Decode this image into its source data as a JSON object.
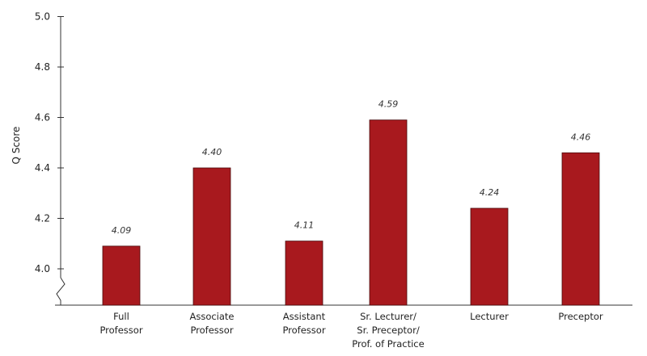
{
  "chart_data": {
    "type": "bar",
    "ylabel": "Q Score",
    "xlabel": "",
    "ylim": [
      3.9,
      5.0
    ],
    "y_ticks": [
      "5.0",
      "4.8",
      "4.6",
      "4.4",
      "4.2",
      "4.0"
    ],
    "axis_break": true,
    "grid": false,
    "bar_color": "#a8191e",
    "categories": [
      [
        "Full",
        "Professor"
      ],
      [
        "Associate",
        "Professor"
      ],
      [
        "Assistant",
        "Professor"
      ],
      [
        "Sr. Lecturer/",
        "Sr. Preceptor/",
        "Prof. of Practice"
      ],
      [
        "Lecturer"
      ],
      [
        "Preceptor"
      ]
    ],
    "values": [
      4.09,
      4.4,
      4.11,
      4.59,
      4.24,
      4.46
    ],
    "value_labels": [
      "4.09",
      "4.40",
      "4.11",
      "4.59",
      "4.24",
      "4.46"
    ]
  }
}
